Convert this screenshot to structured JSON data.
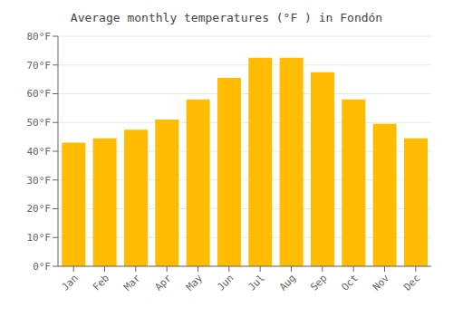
{
  "chart_data": {
    "type": "bar",
    "title": "Average monthly temperatures (°F ) in Fondón",
    "categories": [
      "Jan",
      "Feb",
      "Mar",
      "Apr",
      "May",
      "Jun",
      "Jul",
      "Aug",
      "Sep",
      "Oct",
      "Nov",
      "Dec"
    ],
    "values": [
      43,
      44.5,
      47.5,
      51,
      58,
      65.5,
      72.5,
      72.5,
      67.5,
      58,
      49.5,
      44.5
    ],
    "color": "#FFBC00",
    "ylim": [
      0,
      80
    ],
    "yticks": [
      {
        "value": 0,
        "label": "0°F"
      },
      {
        "value": 10,
        "label": "10°F"
      },
      {
        "value": 20,
        "label": "20°F"
      },
      {
        "value": 30,
        "label": "30°F"
      },
      {
        "value": 40,
        "label": "40°F"
      },
      {
        "value": 50,
        "label": "50°F"
      },
      {
        "value": 60,
        "label": "60°F"
      },
      {
        "value": 70,
        "label": "70°F"
      },
      {
        "value": 80,
        "label": "80°F"
      }
    ],
    "grid": true
  }
}
